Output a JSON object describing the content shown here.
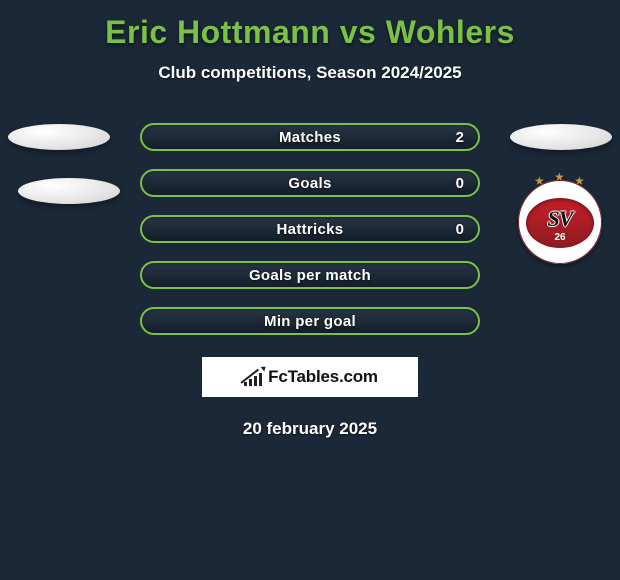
{
  "colors": {
    "background": "#1a2838",
    "accent_green": "#7bc143",
    "text_white": "#ffffff",
    "badge_bg": "#ffffff",
    "badge_text": "#111111",
    "logo_red": "#c8202a",
    "logo_red_dark": "#8e1a20",
    "logo_star": "#c29a3a"
  },
  "typography": {
    "title_fontsize": 32,
    "subtitle_fontsize": 17,
    "stat_label_fontsize": 15,
    "date_fontsize": 17
  },
  "title": "Eric Hottmann vs Wohlers",
  "subtitle": "Club competitions, Season 2024/2025",
  "stats": {
    "type": "stat-pill-list",
    "pill_height": 28,
    "pill_border_radius": 14,
    "pill_border_color": "#7bc143",
    "pill_gap": 18,
    "rows": [
      {
        "label": "Matches",
        "right_value": "2"
      },
      {
        "label": "Goals",
        "right_value": "0"
      },
      {
        "label": "Hattricks",
        "right_value": "0"
      },
      {
        "label": "Goals per match",
        "right_value": ""
      },
      {
        "label": "Min per goal",
        "right_value": ""
      }
    ]
  },
  "badge": {
    "text": "FcTables.com"
  },
  "date": "20 february 2025",
  "club_logo": {
    "initials": "SV",
    "year": "26"
  }
}
